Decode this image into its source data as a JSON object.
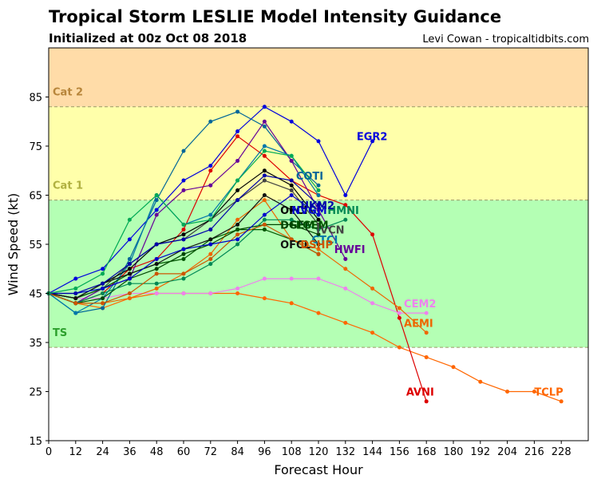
{
  "chart_data": {
    "type": "line",
    "title": "Tropical Storm LESLIE Model Intensity Guidance",
    "subtitle": "Initialized at 00z Oct 08 2018",
    "credit": "Levi Cowan - tropicaltidbits.com",
    "xlabel": "Forecast Hour",
    "ylabel": "Wind Speed (kt)",
    "xlim": [
      0,
      240
    ],
    "ylim": [
      15,
      95
    ],
    "xticks": [
      0,
      12,
      24,
      36,
      48,
      60,
      72,
      84,
      96,
      108,
      120,
      132,
      144,
      156,
      168,
      180,
      192,
      204,
      216,
      228
    ],
    "yticks": [
      15,
      25,
      35,
      45,
      55,
      65,
      75,
      85
    ],
    "bands": [
      {
        "name": "Cat 2",
        "from": 83,
        "to": 95,
        "color": "#ffdca8"
      },
      {
        "name": "Cat 1",
        "from": 64,
        "to": 83,
        "color": "#ffffaa"
      },
      {
        "name": "TS",
        "from": 34,
        "to": 64,
        "color": "#b4ffb4"
      }
    ],
    "band_labels": [
      {
        "text": "Cat 2",
        "y": 85,
        "color": "#b8863b"
      },
      {
        "text": "Cat 1",
        "y": 66,
        "color": "#b0b040"
      },
      {
        "text": "TS",
        "y": 36,
        "color": "#2ca02c"
      }
    ],
    "series": [
      {
        "name": "EGR2",
        "color": "#0000dd",
        "x": [
          0,
          12,
          24,
          36,
          48,
          60,
          72,
          84,
          96,
          108,
          120,
          132,
          144
        ],
        "y": [
          45,
          48,
          50,
          56,
          62,
          68,
          71,
          78,
          83,
          80,
          76,
          65,
          76
        ],
        "label_at": [
          137,
          77
        ]
      },
      {
        "name": "TCLP",
        "color": "#ff6600",
        "x": [
          0,
          12,
          24,
          36,
          48,
          60,
          72,
          84,
          96,
          108,
          120,
          132,
          144,
          156,
          168,
          180,
          192,
          204,
          216,
          228
        ],
        "y": [
          45,
          43,
          42,
          44,
          45,
          45,
          45,
          45,
          44,
          43,
          41,
          39,
          37,
          34,
          32,
          30,
          27,
          25,
          25,
          23
        ],
        "label_at": [
          216,
          25
        ]
      },
      {
        "name": "AVNI",
        "color": "#dd0000",
        "x": [
          0,
          12,
          24,
          36,
          48,
          60,
          72,
          84,
          96,
          108,
          120,
          132,
          144,
          156,
          168
        ],
        "y": [
          45,
          43,
          45,
          50,
          52,
          58,
          70,
          77,
          73,
          68,
          65,
          63,
          57,
          40,
          23
        ],
        "label_at": [
          159,
          25
        ]
      },
      {
        "name": "CEM2",
        "color": "#ee82ee",
        "x": [
          0,
          12,
          24,
          36,
          48,
          60,
          72,
          84,
          96,
          108,
          120,
          132,
          144,
          156,
          168
        ],
        "y": [
          45,
          44,
          44,
          45,
          45,
          45,
          45,
          46,
          48,
          48,
          48,
          46,
          43,
          41,
          41
        ],
        "label_at": [
          158,
          43
        ]
      },
      {
        "name": "AEMI",
        "color": "#ee6600",
        "x": [
          0,
          12,
          24,
          36,
          48,
          60,
          72,
          84,
          96,
          108,
          120,
          132,
          144,
          156,
          168
        ],
        "y": [
          45,
          43,
          43,
          44,
          46,
          49,
          53,
          60,
          64,
          56,
          54,
          50,
          46,
          42,
          37
        ],
        "label_at": [
          158,
          39
        ]
      },
      {
        "name": "COTI",
        "color": "#006699",
        "x": [
          0,
          12,
          24,
          36,
          48,
          60,
          72,
          84,
          96,
          108,
          120
        ],
        "y": [
          45,
          41,
          42,
          52,
          64,
          74,
          80,
          82,
          79,
          72,
          67
        ],
        "label_at": [
          110,
          69
        ]
      },
      {
        "name": "HWFI",
        "color": "#660099",
        "x": [
          0,
          12,
          24,
          36,
          48,
          60,
          72,
          84,
          96,
          108,
          120,
          132
        ],
        "y": [
          45,
          43,
          46,
          48,
          61,
          66,
          67,
          72,
          80,
          72,
          62,
          52
        ],
        "label_at": [
          127,
          54
        ]
      },
      {
        "name": "CTCI",
        "color": "#0077aa",
        "x": [
          0,
          12,
          24,
          36,
          48,
          60,
          72,
          84,
          96,
          108,
          120
        ],
        "y": [
          45,
          41,
          44,
          51,
          65,
          59,
          61,
          68,
          75,
          73,
          65
        ],
        "label_at": [
          117,
          56
        ]
      },
      {
        "name": "IVCN",
        "color": "#444444",
        "x": [
          0,
          12,
          24,
          36,
          48,
          60,
          72,
          84,
          96,
          108,
          120
        ],
        "y": [
          45,
          44,
          46,
          51,
          55,
          56,
          60,
          64,
          68,
          66,
          59
        ],
        "label_at": [
          119,
          58
        ]
      },
      {
        "name": "DGEM",
        "color": "#004400",
        "x": [
          0,
          12,
          24,
          36,
          48,
          60,
          72,
          84,
          96,
          108,
          120
        ],
        "y": [
          45,
          43,
          44,
          48,
          50,
          53,
          55,
          58,
          59,
          59,
          57
        ],
        "label_at": [
          103,
          59
        ]
      },
      {
        "name": "OFCI",
        "color": "#000000",
        "x": [
          0,
          12,
          24,
          36,
          48,
          60,
          72,
          84,
          96,
          108,
          120
        ],
        "y": [
          45,
          44,
          47,
          50,
          55,
          57,
          60,
          66,
          70,
          67,
          60
        ],
        "label_at": [
          103,
          62
        ]
      },
      {
        "name": "HMNI",
        "color": "#008855",
        "x": [
          0,
          12,
          24,
          36,
          48,
          60,
          72,
          84,
          96,
          108,
          120,
          132
        ],
        "y": [
          45,
          43,
          45,
          47,
          47,
          48,
          51,
          55,
          60,
          60,
          58,
          60
        ],
        "label_at": [
          124,
          62
        ]
      },
      {
        "name": "LGEM",
        "color": "#005500",
        "x": [
          0,
          12,
          24,
          36,
          48,
          60,
          72,
          84,
          96,
          108,
          120
        ],
        "y": [
          45,
          44,
          46,
          49,
          51,
          52,
          56,
          58,
          58,
          56,
          53
        ],
        "label_at": [
          110,
          59
        ]
      },
      {
        "name": "OFCL",
        "color": "#111111",
        "x": [
          0,
          12,
          24,
          36,
          48,
          60,
          72,
          84,
          96,
          108,
          120
        ],
        "y": [
          45,
          44,
          47,
          49,
          51,
          54,
          56,
          59,
          65,
          62,
          55
        ],
        "label_at": [
          103,
          55
        ]
      },
      {
        "name": "DSHP",
        "color": "#cc5500",
        "x": [
          0,
          12,
          24,
          36,
          48,
          60,
          72,
          84,
          96,
          108,
          120
        ],
        "y": [
          45,
          43,
          43,
          45,
          49,
          49,
          52,
          57,
          59,
          56,
          53
        ],
        "label_at": [
          112,
          55
        ]
      },
      {
        "name": "NVGM",
        "color": "#0000cc",
        "x": [
          0,
          12,
          24,
          36,
          48,
          60,
          72,
          84,
          96,
          108,
          120
        ],
        "y": [
          45,
          45,
          46,
          48,
          52,
          54,
          55,
          56,
          61,
          65,
          61
        ],
        "label_at": [
          108,
          62
        ]
      },
      {
        "name": "UKM2",
        "color": "#0000aa",
        "x": [
          0,
          12,
          24,
          36,
          48,
          60,
          72,
          84,
          96,
          108,
          120
        ],
        "y": [
          45,
          45,
          47,
          51,
          55,
          56,
          58,
          64,
          69,
          68,
          63
        ],
        "label_at": [
          112,
          63
        ]
      },
      {
        "name": "",
        "color": "#00aa55",
        "x": [
          0,
          12,
          24,
          36,
          48,
          60,
          72,
          84,
          96,
          108,
          120
        ],
        "y": [
          45,
          46,
          49,
          60,
          65,
          59,
          60,
          68,
          74,
          73,
          66
        ],
        "label_at": null
      }
    ]
  }
}
